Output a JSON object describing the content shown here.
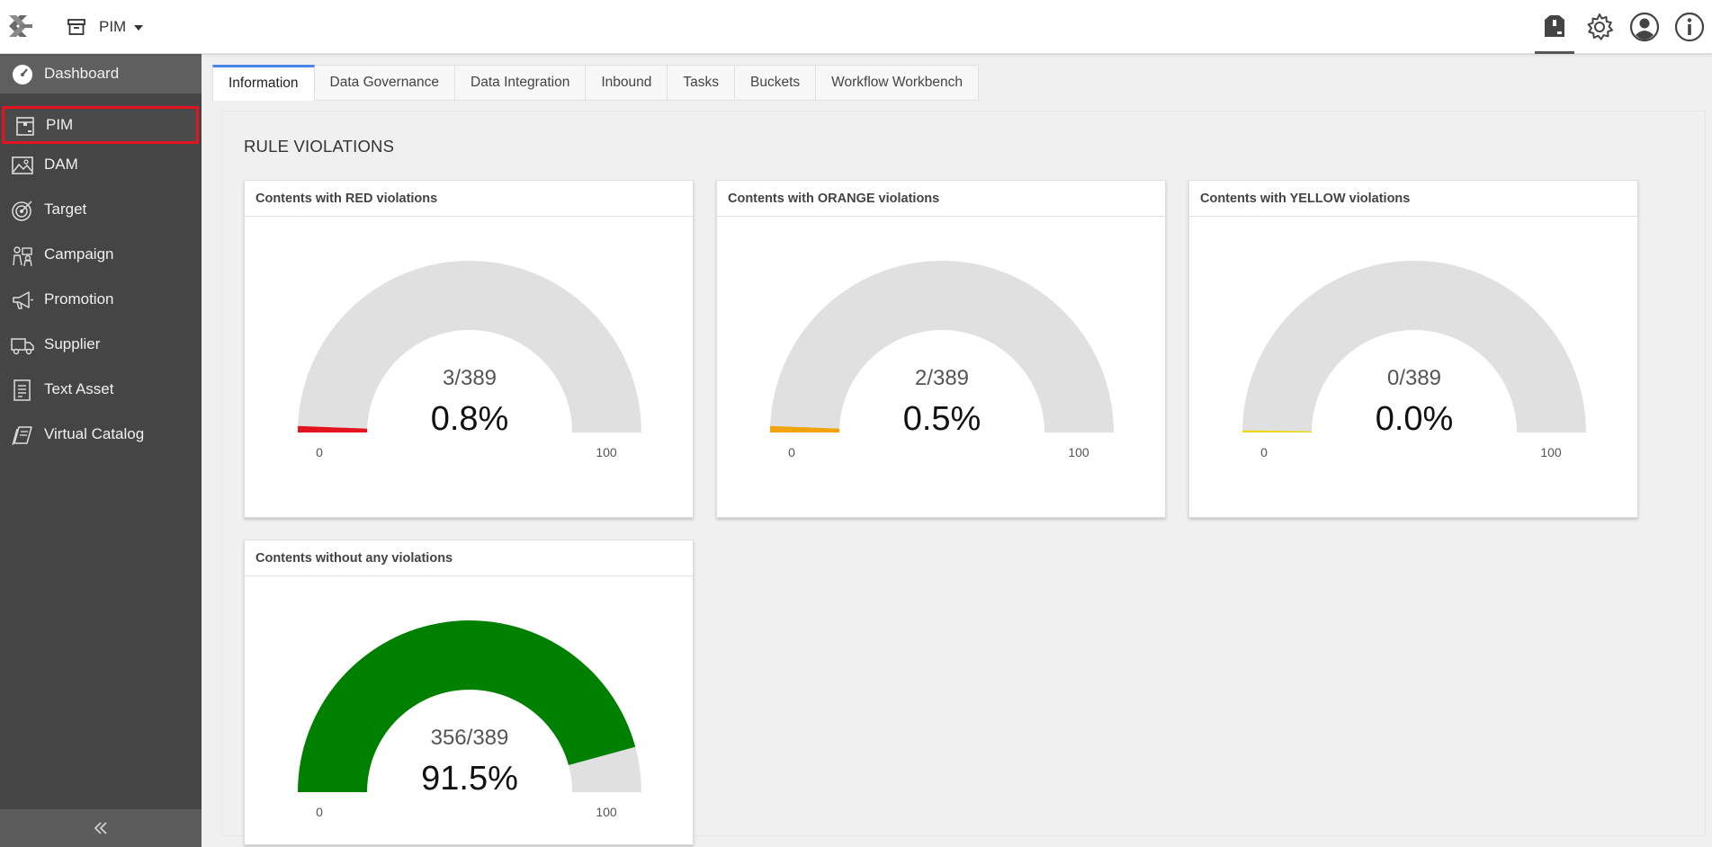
{
  "topbar": {
    "module_label": "PIM",
    "icons": [
      "product-box-icon",
      "gear-icon",
      "user-icon",
      "info-icon"
    ]
  },
  "sidebar": {
    "items": [
      {
        "label": "Dashboard",
        "icon": "dashboard-gauge-icon"
      },
      {
        "label": "PIM",
        "icon": "pim-box-icon",
        "selected": true
      },
      {
        "label": "DAM",
        "icon": "image-icon"
      },
      {
        "label": "Target",
        "icon": "target-icon"
      },
      {
        "label": "Campaign",
        "icon": "campaign-icon"
      },
      {
        "label": "Promotion",
        "icon": "megaphone-icon"
      },
      {
        "label": "Supplier",
        "icon": "truck-icon"
      },
      {
        "label": "Text Asset",
        "icon": "document-icon"
      },
      {
        "label": "Virtual Catalog",
        "icon": "catalog-icon"
      }
    ],
    "collapse_icon": "double-chevron-left-icon"
  },
  "tabs": [
    {
      "label": "Information",
      "active": true
    },
    {
      "label": "Data Governance"
    },
    {
      "label": "Data Integration"
    },
    {
      "label": "Inbound"
    },
    {
      "label": "Tasks"
    },
    {
      "label": "Buckets"
    },
    {
      "label": "Workflow Workbench"
    }
  ],
  "panel": {
    "title": "RULE VIOLATIONS",
    "gauges": [
      {
        "title": "Contents with RED violations",
        "ratio": "3/389",
        "percent": "0.8%",
        "value": 0.8,
        "min": "0",
        "max": "100",
        "color": "#e3141f"
      },
      {
        "title": "Contents with ORANGE violations",
        "ratio": "2/389",
        "percent": "0.5%",
        "value": 0.5,
        "min": "0",
        "max": "100",
        "color": "#f0a30a"
      },
      {
        "title": "Contents with YELLOW violations",
        "ratio": "0/389",
        "percent": "0.0%",
        "value": 0.0,
        "min": "0",
        "max": "100",
        "color": "#f2d600"
      },
      {
        "title": "Contents without any violations",
        "ratio": "356/389",
        "percent": "91.5%",
        "value": 91.5,
        "min": "0",
        "max": "100",
        "color": "#008000"
      }
    ]
  },
  "colors": {
    "sidebar_bg": "#454545",
    "selected_outline": "#e3141f",
    "active_tab": "#4a86e8",
    "gauge_track": "#e0e0e0"
  }
}
